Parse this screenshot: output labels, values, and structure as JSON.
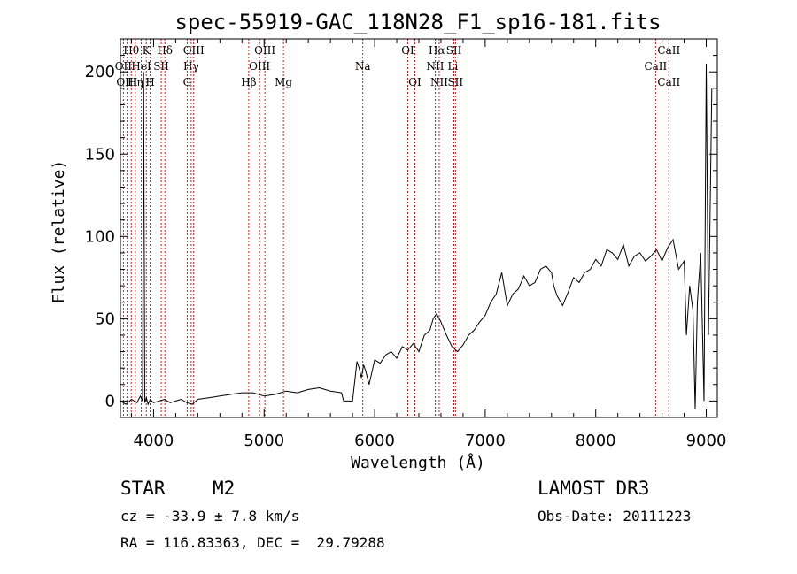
{
  "chart_data": {
    "type": "line",
    "title": "spec-55919-GAC_118N28_F1_sp16-181.fits",
    "xlabel": "Wavelength (Å)",
    "ylabel": "Flux (relative)",
    "xlim": [
      3700,
      9100
    ],
    "ylim": [
      -10,
      220
    ],
    "xticks": [
      4000,
      5000,
      6000,
      7000,
      8000,
      9000
    ],
    "yticks": [
      0,
      50,
      100,
      150,
      200
    ],
    "spectrum": {
      "x": [
        3700,
        3750,
        3800,
        3850,
        3880,
        3900,
        3910,
        3920,
        3935,
        3950,
        3970,
        4000,
        4050,
        4100,
        4150,
        4200,
        4250,
        4300,
        4350,
        4400,
        4500,
        4600,
        4700,
        4800,
        4900,
        5000,
        5100,
        5200,
        5300,
        5400,
        5500,
        5600,
        5700,
        5720,
        5740,
        5800,
        5840,
        5860,
        5880,
        5900,
        5920,
        5950,
        6000,
        6050,
        6100,
        6150,
        6200,
        6250,
        6300,
        6350,
        6400,
        6450,
        6500,
        6530,
        6560,
        6600,
        6650,
        6700,
        6750,
        6800,
        6850,
        6900,
        6950,
        7000,
        7050,
        7100,
        7150,
        7200,
        7250,
        7300,
        7350,
        7400,
        7450,
        7500,
        7550,
        7600,
        7620,
        7650,
        7700,
        7750,
        7800,
        7850,
        7900,
        7950,
        8000,
        8050,
        8100,
        8150,
        8200,
        8250,
        8300,
        8350,
        8400,
        8450,
        8500,
        8550,
        8600,
        8650,
        8700,
        8750,
        8800,
        8820,
        8850,
        8880,
        8900,
        8920,
        8950,
        8980,
        9000,
        9020,
        9050
      ],
      "y": [
        0,
        -2,
        1,
        -1,
        3,
        0,
        200,
        -1,
        2,
        -2,
        1,
        -1,
        0,
        1,
        -1,
        0,
        1,
        -1,
        -2,
        1,
        2,
        3,
        4,
        5,
        5,
        3,
        4,
        6,
        5,
        7,
        8,
        6,
        5,
        0,
        0,
        0,
        24,
        20,
        14,
        22,
        18,
        10,
        25,
        23,
        28,
        30,
        26,
        33,
        31,
        35,
        30,
        40,
        43,
        50,
        53,
        48,
        40,
        33,
        30,
        34,
        40,
        43,
        48,
        52,
        60,
        65,
        78,
        58,
        65,
        68,
        76,
        70,
        72,
        80,
        82,
        78,
        70,
        64,
        58,
        66,
        75,
        72,
        78,
        80,
        86,
        82,
        92,
        90,
        86,
        95,
        82,
        88,
        90,
        85,
        88,
        92,
        85,
        93,
        98,
        80,
        85,
        40,
        70,
        55,
        -5,
        60,
        90,
        0,
        205,
        40,
        190
      ]
    },
    "lines": [
      {
        "label": "Hθ",
        "x": 3798,
        "row": 1
      },
      {
        "label": "K",
        "x": 3934,
        "row": 1
      },
      {
        "label": "Hδ",
        "x": 4102,
        "row": 1
      },
      {
        "label": "OIII",
        "x": 4363,
        "row": 1
      },
      {
        "label": "OIII",
        "x": 5007,
        "row": 1
      },
      {
        "label": "OI",
        "x": 6300,
        "row": 1
      },
      {
        "label": "Hα",
        "x": 6563,
        "row": 1
      },
      {
        "label": "SII",
        "x": 6717,
        "row": 1
      },
      {
        "label": "CaII",
        "x": 8662,
        "row": 1
      },
      {
        "label": "OII",
        "x": 3727,
        "row": 2
      },
      {
        "label": "HeI",
        "x": 3889,
        "row": 2
      },
      {
        "label": "SII",
        "x": 4069,
        "row": 2
      },
      {
        "label": "Hγ",
        "x": 4340,
        "row": 2
      },
      {
        "label": "OIII",
        "x": 4959,
        "row": 2
      },
      {
        "label": "Na",
        "x": 5893,
        "row": 2
      },
      {
        "label": "NII",
        "x": 6548,
        "row": 2
      },
      {
        "label": "Li",
        "x": 6708,
        "row": 2
      },
      {
        "label": "CaII",
        "x": 8542,
        "row": 2
      },
      {
        "label": "OIII",
        "x": 3759,
        "row": 3
      },
      {
        "label": "Hη",
        "x": 3835,
        "row": 3
      },
      {
        "label": "H",
        "x": 3969,
        "row": 3
      },
      {
        "label": "G",
        "x": 4304,
        "row": 3
      },
      {
        "label": "Hβ",
        "x": 4861,
        "row": 3
      },
      {
        "label": "Mg",
        "x": 5175,
        "row": 3
      },
      {
        "label": "OI",
        "x": 6364,
        "row": 3
      },
      {
        "label": "NII",
        "x": 6584,
        "row": 3
      },
      {
        "label": "SII",
        "x": 6731,
        "row": 3
      },
      {
        "label": "CaII",
        "x": 8662,
        "row": 3
      }
    ]
  },
  "info": {
    "object_class": "STAR",
    "subclass": "M2",
    "survey": "LAMOST DR3",
    "cz": "cz = -33.9 ± 7.8 km/s",
    "obs_date": "Obs-Date: 20111223",
    "radec": "RA = 116.83363, DEC =  29.79288"
  }
}
